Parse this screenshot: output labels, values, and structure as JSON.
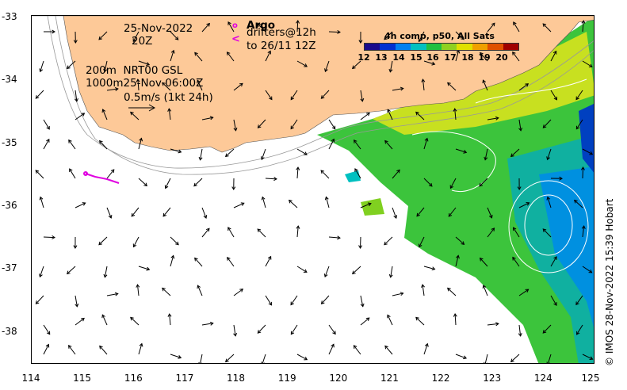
{
  "map": {
    "date_line1": "25-Nov-2022",
    "date_line2": "20Z",
    "argo_label": "Argo",
    "drifters_line1": "drifters@12h",
    "drifters_line2": "to 26/11 12Z",
    "product_line1": "200m  NRT00 GSL",
    "product_line2": "1000m25-Nov 06:00Z",
    "scale_label": "0.5m/s (1kt 24h)",
    "credit": "© IMOS 28-Nov-2022 15:39 Hobart"
  },
  "axes": {
    "x_ticks": [
      "114",
      "115",
      "116",
      "117",
      "118",
      "119",
      "120",
      "121",
      "122",
      "123",
      "124",
      "125"
    ],
    "y_ticks": [
      "-33",
      "-34",
      "-35",
      "-36",
      "-37",
      "-38"
    ],
    "lon_range": [
      114,
      125
    ],
    "lat_range": [
      -38.5,
      -33
    ]
  },
  "colorbar": {
    "title": "4h comp, p50, All Sats",
    "ticks": [
      "12",
      "13",
      "14",
      "15",
      "16",
      "17",
      "18",
      "19",
      "20"
    ],
    "colors": [
      "#1a0a8c",
      "#0030d0",
      "#0080f0",
      "#00c0c0",
      "#20c040",
      "#90d020",
      "#e0e000",
      "#f0a000",
      "#e05000",
      "#a00000"
    ]
  },
  "colors": {
    "land": "#fdc998",
    "argo": "#e000e0"
  }
}
